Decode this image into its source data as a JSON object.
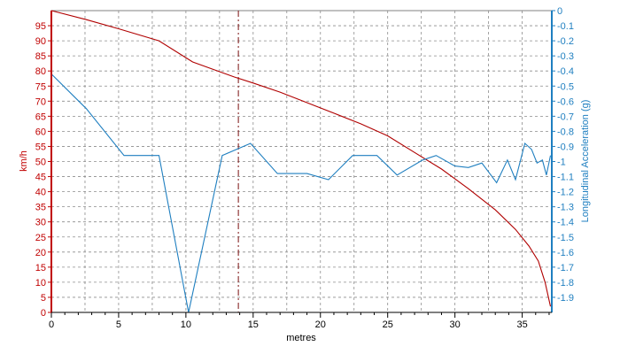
{
  "chart_data": {
    "type": "line",
    "xlabel": "metres",
    "xlim": [
      0,
      37.2
    ],
    "x_ticks": [
      0,
      5,
      10,
      15,
      20,
      25,
      30,
      35
    ],
    "cursor_x": 13.9,
    "y_left": {
      "label": "km/h",
      "lim": [
        0,
        100
      ],
      "ticks": [
        0,
        5,
        10,
        15,
        20,
        25,
        30,
        35,
        40,
        45,
        50,
        55,
        60,
        65,
        70,
        75,
        80,
        85,
        90,
        95
      ],
      "color": "#c00000"
    },
    "y_right": {
      "label": "Longitudinal Acceleration (g)",
      "lim": [
        -2.0,
        0
      ],
      "ticks": [
        0,
        -0.1,
        -0.2,
        -0.3,
        -0.4,
        -0.5,
        -0.6,
        -0.7,
        -0.8,
        -0.9,
        -1,
        -1.1,
        -1.2,
        -1.3,
        -1.4,
        -1.5,
        -1.6,
        -1.7,
        -1.8,
        -1.9
      ],
      "color": "#1f7fc0"
    },
    "series": [
      {
        "axis": "left",
        "color": "#b00000",
        "points": [
          [
            0,
            100
          ],
          [
            2.6,
            97
          ],
          [
            5,
            94
          ],
          [
            8,
            90
          ],
          [
            10.5,
            83
          ],
          [
            13.6,
            78
          ],
          [
            15,
            76
          ],
          [
            17,
            73
          ],
          [
            19,
            69.5
          ],
          [
            21,
            66
          ],
          [
            23,
            62.5
          ],
          [
            25,
            58.5
          ],
          [
            27,
            53
          ],
          [
            29,
            47.5
          ],
          [
            31,
            41
          ],
          [
            33,
            34
          ],
          [
            34.5,
            27.5
          ],
          [
            35.5,
            22
          ],
          [
            36.2,
            17
          ],
          [
            36.7,
            10
          ],
          [
            37.1,
            2
          ]
        ]
      },
      {
        "axis": "right",
        "color": "#1f7fc0",
        "points": [
          [
            0,
            -0.42
          ],
          [
            2.6,
            -0.65
          ],
          [
            5.4,
            -0.96
          ],
          [
            8,
            -0.96
          ],
          [
            10.2,
            -2.0
          ],
          [
            12.7,
            -0.96
          ],
          [
            14.8,
            -0.88
          ],
          [
            16.8,
            -1.08
          ],
          [
            19,
            -1.08
          ],
          [
            20.6,
            -1.12
          ],
          [
            22.4,
            -0.96
          ],
          [
            24.2,
            -0.96
          ],
          [
            25.7,
            -1.09
          ],
          [
            27.6,
            -0.99
          ],
          [
            28.6,
            -0.96
          ],
          [
            30,
            -1.03
          ],
          [
            31,
            -1.04
          ],
          [
            32,
            -1.01
          ],
          [
            33.1,
            -1.14
          ],
          [
            33.9,
            -0.99
          ],
          [
            34.5,
            -1.12
          ],
          [
            35.2,
            -0.88
          ],
          [
            35.7,
            -0.92
          ],
          [
            36.1,
            -1.01
          ],
          [
            36.5,
            -0.99
          ],
          [
            36.8,
            -1.09
          ],
          [
            37.1,
            -0.96
          ]
        ]
      }
    ],
    "grid": true,
    "grid_style": "dashed"
  }
}
